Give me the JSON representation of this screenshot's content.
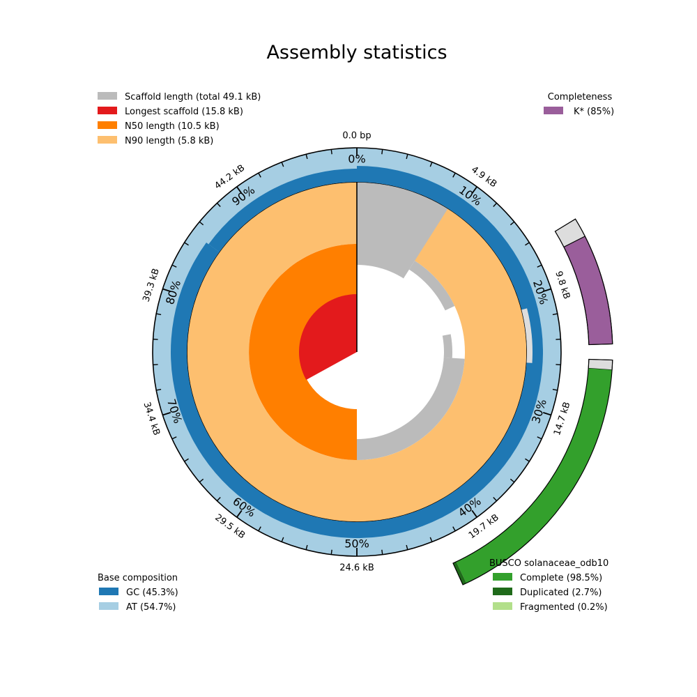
{
  "chart_data": {
    "type": "snail",
    "title": "Assembly statistics",
    "scaffold_legend": [
      {
        "label": "Scaffold length (total 49.1 kB)",
        "color": "#bbbbbb"
      },
      {
        "label": "Longest scaffold (15.8 kB)",
        "color": "#e31a1c"
      },
      {
        "label": "N50 length (10.5 kB)",
        "color": "#ff7f00"
      },
      {
        "label": "N90 length (5.8 kB)",
        "color": "#fdbf6f"
      }
    ],
    "completeness_legend": {
      "title": "Completeness",
      "items": [
        {
          "label": "K* (85%)",
          "color": "#9a5e9b"
        }
      ]
    },
    "base_composition_legend": {
      "title": "Base composition",
      "items": [
        {
          "label": "GC (45.3%)",
          "color": "#1f78b4"
        },
        {
          "label": "AT (54.7%)",
          "color": "#a6cee3"
        }
      ]
    },
    "busco_legend": {
      "title": "BUSCO solanaceae_odb10",
      "items": [
        {
          "label": "Complete (98.5%)",
          "color": "#33a02c"
        },
        {
          "label": "Duplicated (2.7%)",
          "color": "#1f6a1a"
        },
        {
          "label": "Fragmented (0.2%)",
          "color": "#b2df8a"
        }
      ]
    },
    "length_ticks": [
      "0.0 bp",
      "4.9 kB",
      "9.8 kB",
      "14.7 kB",
      "19.7 kB",
      "24.6 kB",
      "29.5 kB",
      "34.4 kB",
      "39.3 kB",
      "44.2 kB"
    ],
    "percent_ticks": [
      "0%",
      "10%",
      "20%",
      "30%",
      "40%",
      "50%",
      "60%",
      "70%",
      "80%",
      "90%"
    ],
    "total_length_kb": 49.1,
    "longest_scaffold_kb": 15.8,
    "n50_kb": 10.5,
    "n90_kb": 5.8,
    "gc_percent": 45.3,
    "at_percent": 54.7,
    "kstar_percent": 85,
    "busco_complete_percent": 98.5,
    "busco_duplicated_percent": 2.7,
    "busco_fragmented_percent": 0.2,
    "colors": {
      "scaffold": "#bbbbbb",
      "n90": "#fdbf6f",
      "n50": "#ff7f00",
      "longest": "#e31a1c",
      "gc": "#1f78b4",
      "at": "#a6cee3",
      "kstar": "#9a5e9b",
      "busco_complete": "#33a02c",
      "busco_duplicated": "#1f6a1a",
      "missing": "#dddddd"
    }
  }
}
